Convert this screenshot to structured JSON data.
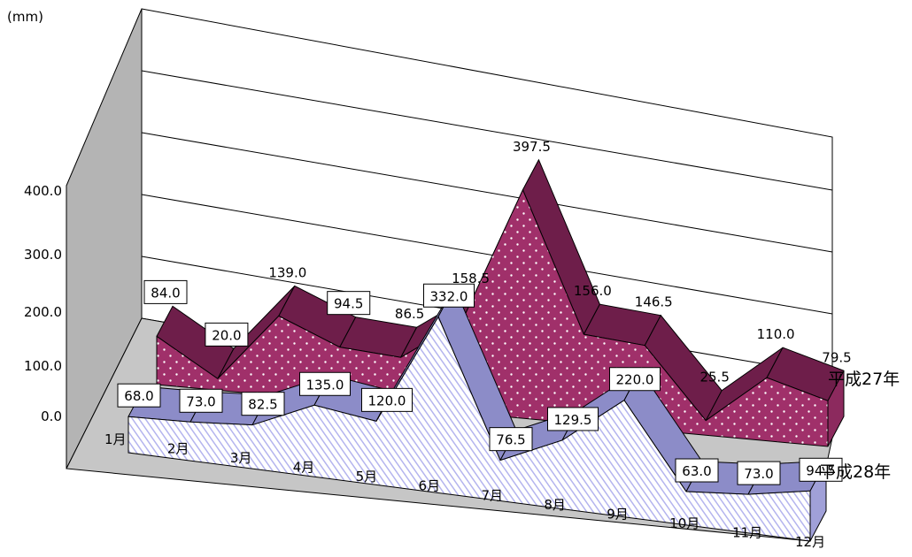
{
  "chart_data": {
    "type": "area",
    "unit_label": "(mm)",
    "categories": [
      "1月",
      "2月",
      "3月",
      "4月",
      "5月",
      "6月",
      "7月",
      "8月",
      "9月",
      "10月",
      "11月",
      "12月"
    ],
    "y_ticks": [
      "0.0",
      "100.0",
      "200.0",
      "300.0",
      "400.0"
    ],
    "ylim": [
      0,
      400
    ],
    "grid": true,
    "legend": "series names at right end of each band",
    "series": [
      {
        "name": "平成27年",
        "values": [
          84.0,
          20.0,
          139.0,
          94.5,
          86.5,
          158.5,
          397.5,
          156.0,
          146.5,
          25.5,
          110.0,
          79.5
        ],
        "color": "#a0306a"
      },
      {
        "name": "平成28年",
        "values": [
          68.0,
          73.0,
          82.5,
          135.0,
          120.0,
          332.0,
          76.5,
          129.5,
          220.0,
          63.0,
          73.0,
          94.5
        ],
        "color": "#b4b4ee"
      }
    ]
  }
}
